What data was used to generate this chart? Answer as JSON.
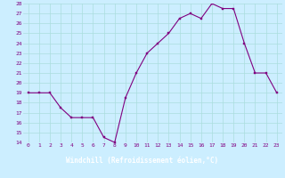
{
  "x": [
    0,
    1,
    2,
    3,
    4,
    5,
    6,
    7,
    8,
    9,
    10,
    11,
    12,
    13,
    14,
    15,
    16,
    17,
    18,
    19,
    20,
    21,
    22,
    23
  ],
  "y": [
    19,
    19,
    19,
    17.5,
    16.5,
    16.5,
    16.5,
    14.5,
    14,
    18.5,
    21,
    23,
    24,
    25,
    26.5,
    27,
    26.5,
    28,
    27.5,
    27.5,
    24,
    21,
    21,
    19
  ],
  "xlabel": "Windchill (Refroidissement éolien,°C)",
  "ylim": [
    14,
    28
  ],
  "yticks": [
    14,
    15,
    16,
    17,
    18,
    19,
    20,
    21,
    22,
    23,
    24,
    25,
    26,
    27,
    28
  ],
  "xticks": [
    0,
    1,
    2,
    3,
    4,
    5,
    6,
    7,
    8,
    9,
    10,
    11,
    12,
    13,
    14,
    15,
    16,
    17,
    18,
    19,
    20,
    21,
    22,
    23
  ],
  "line_color": "#800080",
  "marker": "s",
  "marker_size": 2,
  "bg_color": "#cceeff",
  "grid_color": "#aadddd",
  "tick_color": "#800080",
  "xlabel_bg": "#800080",
  "xlabel_text_color": "#ffffff",
  "xlabel_fontsize": 5.5,
  "tick_fontsize": 4.5,
  "linewidth": 0.8
}
